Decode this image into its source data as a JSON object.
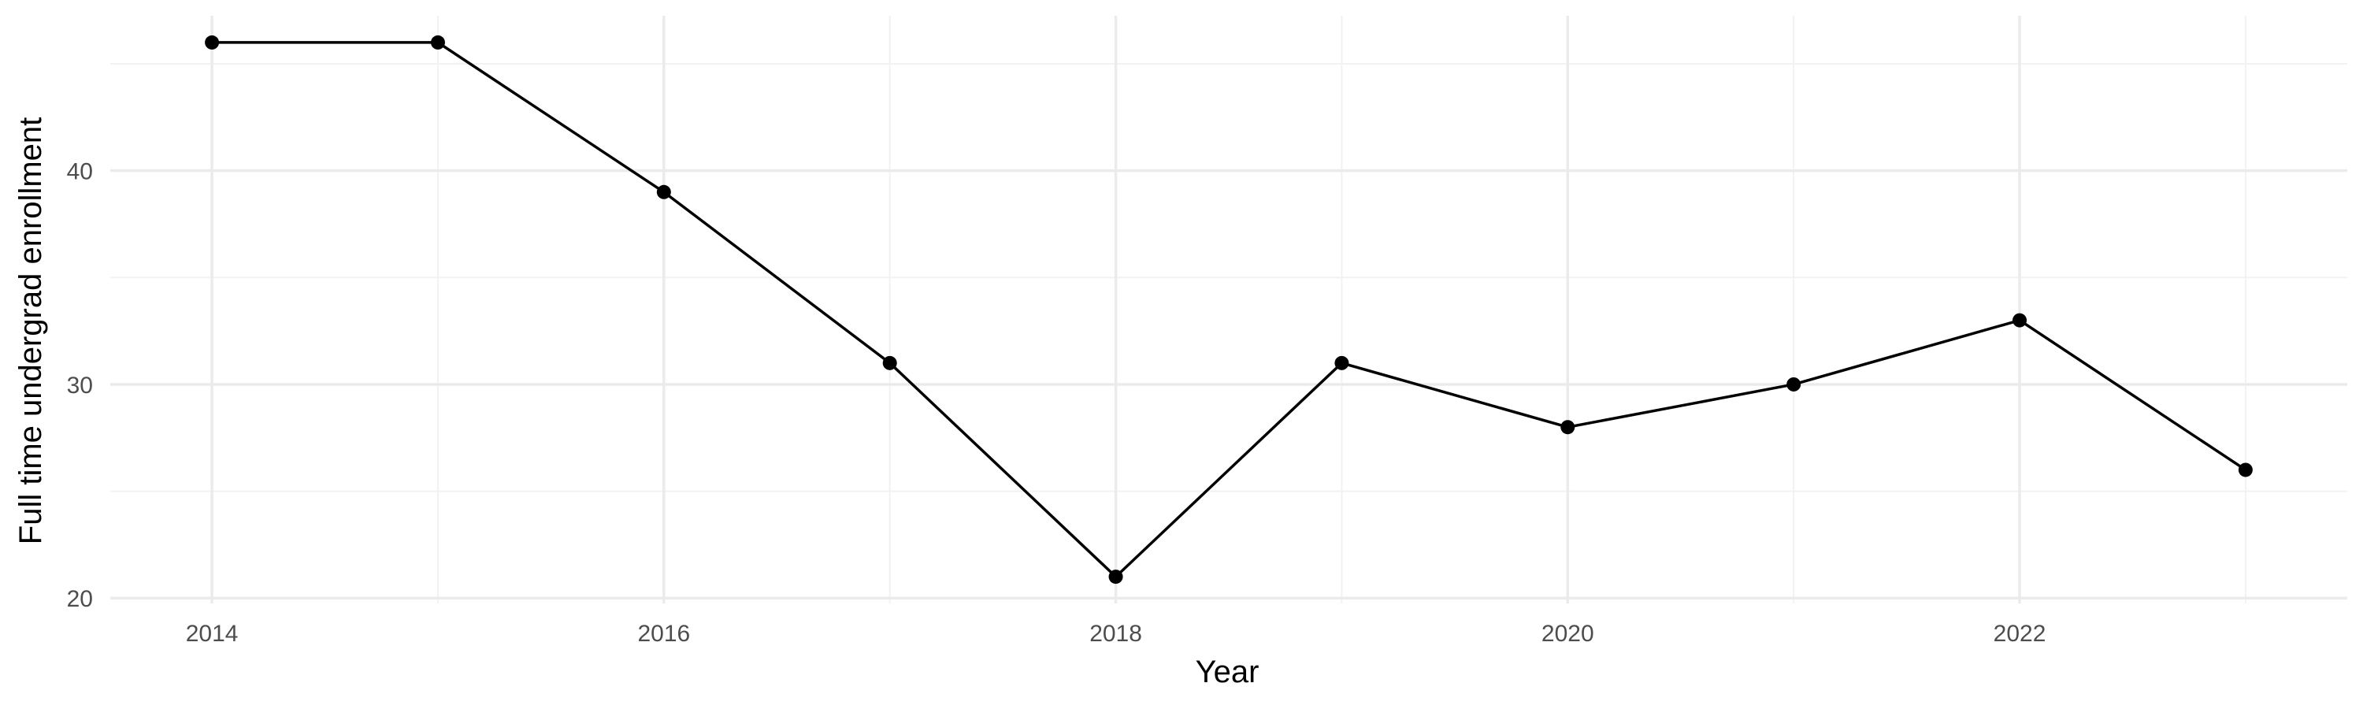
{
  "chart_data": {
    "type": "line",
    "title": "",
    "xlabel": "Year",
    "ylabel": "Full time undergrad enrollment",
    "x": [
      2014,
      2015,
      2016,
      2017,
      2018,
      2019,
      2020,
      2021,
      2022,
      2023
    ],
    "series": [
      {
        "values": [
          46,
          46,
          39,
          31,
          21,
          31,
          28,
          30,
          33,
          26
        ]
      }
    ],
    "xlim": [
      2013.55,
      2023.45
    ],
    "ylim": [
      19.75,
      47.25
    ],
    "x_ticks": [
      2014,
      2016,
      2018,
      2020,
      2022
    ],
    "x_minor_ticks": [
      2015,
      2017,
      2019,
      2021,
      2023
    ],
    "y_ticks": [
      20,
      30,
      40
    ],
    "y_minor_ticks": [
      25,
      35,
      45
    ],
    "grid": true,
    "legend": "none",
    "colors": {
      "line": "#000000",
      "point": "#000000",
      "grid_major": "#ebebeb",
      "grid_minor": "#f2f2f2",
      "tick_label": "#4d4d4d",
      "axis_title": "#000000"
    }
  }
}
